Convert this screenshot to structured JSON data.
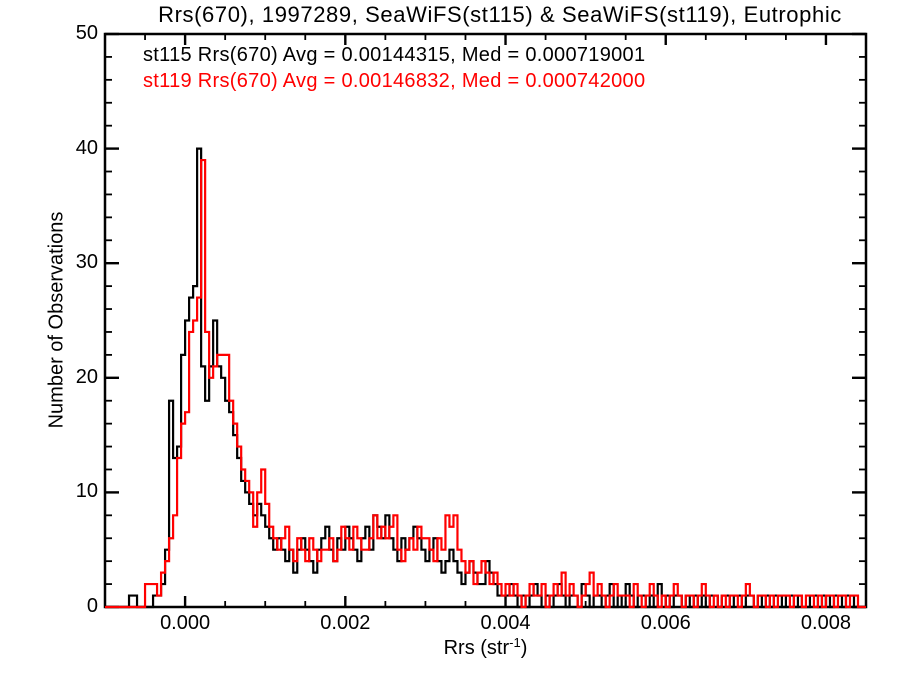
{
  "title": "Rrs(670), 1997289, SeaWiFS(st115) & SeaWiFS(st119), Eutrophic",
  "legend": [
    {
      "series": "st115",
      "color": "#000000",
      "label": "st115 Rrs(670) Avg = 0.00144315, Med = 0.000719001"
    },
    {
      "series": "st119",
      "color": "#ff0000",
      "label": "st119 Rrs(670) Avg = 0.00146832, Med = 0.000742000"
    }
  ],
  "chart_data": {
    "type": "bar",
    "subtype": "step-histogram-overlay",
    "title": "Rrs(670), 1997289, SeaWiFS(st115) & SeaWiFS(st119), Eutrophic",
    "xlabel": "Rrs (str⁻¹)",
    "xlabel_parts": {
      "pre": "Rrs (str",
      "sup": "-1",
      "post": ")"
    },
    "ylabel": "Number of Observations",
    "xlim": [
      -0.001,
      0.0085
    ],
    "ylim": [
      0,
      50
    ],
    "grid": false,
    "legend_position": "top-left-inside",
    "axis": {
      "x_tick_values": [
        0.0,
        0.002,
        0.004,
        0.006,
        0.008
      ],
      "x_tick_labels": [
        "0.000",
        "0.002",
        "0.004",
        "0.006",
        "0.008"
      ],
      "x_minor_step": 0.0005,
      "y_tick_values": [
        0,
        10,
        20,
        30,
        40,
        50
      ],
      "y_tick_labels": [
        "0",
        "10",
        "20",
        "30",
        "40",
        "50"
      ],
      "y_minor_step": 2
    },
    "bin_start": -0.00075,
    "bin_width": 5e-05,
    "stats": {
      "st115": {
        "avg": "0.00144315",
        "med": "0.000719001"
      },
      "st119": {
        "avg": "0.00146832",
        "med": "0.000742000"
      }
    },
    "series": [
      {
        "name": "st115",
        "color": "#000000",
        "counts": [
          0,
          1,
          1,
          0,
          0,
          0,
          0,
          1,
          1,
          2,
          5,
          18,
          13,
          14,
          22,
          25,
          27,
          28,
          40,
          21,
          18,
          21,
          25,
          21,
          20,
          18,
          17,
          15,
          13,
          11,
          10,
          9,
          8,
          9,
          8,
          7,
          6,
          5,
          6,
          5,
          4,
          5,
          3,
          5,
          6,
          5,
          4,
          3,
          5,
          6,
          7,
          5,
          4,
          6,
          5,
          7,
          6,
          5,
          4,
          6,
          7,
          5,
          8,
          7,
          6,
          8,
          6,
          5,
          4,
          6,
          5,
          6,
          7,
          6,
          5,
          4,
          5,
          6,
          4,
          3,
          4,
          5,
          4,
          3,
          2,
          3,
          4,
          3,
          2,
          2,
          4,
          3,
          2,
          1,
          1,
          1,
          2,
          1,
          0,
          1,
          0,
          1,
          2,
          1,
          0,
          1,
          0,
          1,
          2,
          1,
          0,
          1,
          1,
          0,
          2,
          1,
          0,
          1,
          1,
          0,
          1,
          2,
          0,
          1,
          0,
          2,
          1,
          0,
          1,
          1,
          0,
          1,
          0,
          2,
          1,
          1,
          0,
          1,
          1,
          0,
          1,
          0,
          1,
          0,
          1,
          0,
          1,
          1,
          0,
          1,
          1,
          0,
          1,
          1,
          0,
          1,
          1,
          0,
          1,
          0,
          1,
          0,
          1,
          1,
          0,
          1,
          1,
          0,
          1,
          0,
          0,
          1,
          1,
          0,
          1,
          1,
          0,
          1,
          1,
          0,
          1,
          1,
          0,
          0,
          0
        ]
      },
      {
        "name": "st119",
        "color": "#ff0000",
        "counts": [
          0,
          0,
          0,
          0,
          0,
          2,
          2,
          2,
          1,
          3,
          4,
          6,
          8,
          13,
          16,
          17,
          24,
          25,
          27,
          39,
          24,
          20,
          21,
          22,
          22,
          22,
          18,
          16,
          14,
          12,
          11,
          10,
          7,
          10,
          12,
          9,
          7,
          6,
          5,
          6,
          7,
          5,
          4,
          6,
          5,
          4,
          6,
          5,
          4,
          5,
          5,
          6,
          4,
          5,
          7,
          6,
          5,
          7,
          6,
          5,
          5,
          6,
          8,
          6,
          7,
          6,
          7,
          8,
          5,
          4,
          5,
          6,
          5,
          7,
          6,
          6,
          5,
          4,
          6,
          5,
          8,
          7,
          8,
          5,
          4,
          3,
          4,
          2,
          3,
          4,
          3,
          2,
          3,
          2,
          1,
          2,
          1,
          2,
          1,
          0,
          1,
          2,
          1,
          1,
          2,
          0,
          1,
          2,
          1,
          3,
          1,
          2,
          1,
          0,
          1,
          2,
          3,
          1,
          2,
          1,
          0,
          1,
          2,
          1,
          1,
          1,
          0,
          2,
          1,
          0,
          1,
          2,
          1,
          0,
          1,
          0,
          1,
          2,
          1,
          0,
          1,
          1,
          0,
          1,
          2,
          1,
          0,
          1,
          0,
          1,
          0,
          1,
          1,
          0,
          1,
          2,
          1,
          0,
          1,
          1,
          0,
          1,
          0,
          1,
          1,
          1,
          0,
          1,
          1,
          0,
          1,
          1,
          0,
          1,
          0,
          1,
          1,
          0,
          1,
          1,
          0,
          1,
          1,
          0,
          0
        ]
      }
    ]
  }
}
